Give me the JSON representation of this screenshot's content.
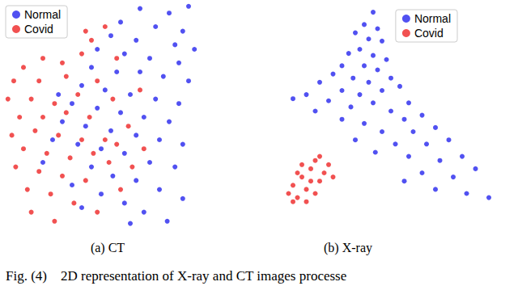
{
  "caption": "Fig. (4)    2D representation of X-ray and CT images processe",
  "chart_data": [
    {
      "type": "scatter",
      "title": "(a) CT",
      "xlim": [
        0,
        100
      ],
      "ylim": [
        0,
        100
      ],
      "tick_labels": false,
      "legend": "upper left",
      "series": [
        {
          "name": "Normal",
          "color": "#3333ee",
          "marker": "circle",
          "values": [
            [
              70,
              98
            ],
            [
              85,
              96
            ],
            [
              95,
              99
            ],
            [
              60,
              92
            ],
            [
              78,
              90
            ],
            [
              92,
              88
            ],
            [
              55,
              86
            ],
            [
              68,
              84
            ],
            [
              88,
              82
            ],
            [
              98,
              80
            ],
            [
              48,
              80
            ],
            [
              62,
              78
            ],
            [
              75,
              76
            ],
            [
              90,
              74
            ],
            [
              45,
              72
            ],
            [
              58,
              70
            ],
            [
              70,
              70
            ],
            [
              82,
              68
            ],
            [
              95,
              66
            ],
            [
              40,
              64
            ],
            [
              52,
              62
            ],
            [
              65,
              60
            ],
            [
              78,
              58
            ],
            [
              90,
              56
            ],
            [
              35,
              56
            ],
            [
              48,
              54
            ],
            [
              60,
              52
            ],
            [
              72,
              50
            ],
            [
              85,
              48
            ],
            [
              30,
              48
            ],
            [
              42,
              46
            ],
            [
              55,
              44
            ],
            [
              68,
              42
            ],
            [
              80,
              40
            ],
            [
              92,
              38
            ],
            [
              38,
              38
            ],
            [
              50,
              36
            ],
            [
              62,
              34
            ],
            [
              75,
              30
            ],
            [
              88,
              28
            ],
            [
              45,
              28
            ],
            [
              56,
              24
            ],
            [
              68,
              22
            ],
            [
              80,
              18
            ],
            [
              92,
              14
            ],
            [
              50,
              16
            ],
            [
              62,
              12
            ],
            [
              72,
              8
            ],
            [
              84,
              4
            ],
            [
              25,
              40
            ],
            [
              20,
              30
            ],
            [
              35,
              20
            ],
            [
              40,
              10
            ],
            [
              28,
              60
            ],
            [
              65,
              3
            ]
          ]
        },
        {
          "name": "Covid",
          "color": "#ee3333",
          "marker": "circle",
          "values": [
            [
              40,
              78
            ],
            [
              52,
              90
            ],
            [
              45,
              84
            ],
            [
              20,
              76
            ],
            [
              10,
              72
            ],
            [
              30,
              74
            ],
            [
              5,
              66
            ],
            [
              18,
              66
            ],
            [
              32,
              68
            ],
            [
              2,
              58
            ],
            [
              14,
              58
            ],
            [
              26,
              56
            ],
            [
              38,
              60
            ],
            [
              8,
              50
            ],
            [
              20,
              50
            ],
            [
              32,
              52
            ],
            [
              44,
              50
            ],
            [
              4,
              42
            ],
            [
              16,
              44
            ],
            [
              28,
              42
            ],
            [
              40,
              40
            ],
            [
              52,
              40
            ],
            [
              10,
              36
            ],
            [
              22,
              34
            ],
            [
              34,
              32
            ],
            [
              46,
              34
            ],
            [
              58,
              38
            ],
            [
              6,
              28
            ],
            [
              18,
              26
            ],
            [
              30,
              24
            ],
            [
              42,
              22
            ],
            [
              54,
              30
            ],
            [
              66,
              28
            ],
            [
              12,
              18
            ],
            [
              24,
              16
            ],
            [
              36,
              12
            ],
            [
              48,
              8
            ],
            [
              60,
              18
            ],
            [
              14,
              8
            ],
            [
              26,
              4
            ],
            [
              72,
              36
            ],
            [
              64,
              46
            ],
            [
              56,
              58
            ],
            [
              48,
              66
            ],
            [
              70,
              62
            ],
            [
              58,
              76
            ],
            [
              42,
              88
            ]
          ]
        }
      ]
    },
    {
      "type": "scatter",
      "title": "(b) X-ray",
      "xlim": [
        0,
        100
      ],
      "ylim": [
        0,
        100
      ],
      "tick_labels": false,
      "legend": "upper right",
      "series": [
        {
          "name": "Normal",
          "color": "#3333ee",
          "marker": "circle",
          "values": [
            [
              44,
              98
            ],
            [
              40,
              92
            ],
            [
              46,
              90
            ],
            [
              36,
              88
            ],
            [
              42,
              85
            ],
            [
              48,
              84
            ],
            [
              38,
              80
            ],
            [
              33,
              78
            ],
            [
              44,
              77
            ],
            [
              50,
              75
            ],
            [
              30,
              72
            ],
            [
              40,
              72
            ],
            [
              46,
              70
            ],
            [
              26,
              68
            ],
            [
              35,
              66
            ],
            [
              42,
              64
            ],
            [
              52,
              66
            ],
            [
              20,
              64
            ],
            [
              30,
              60
            ],
            [
              38,
              58
            ],
            [
              48,
              60
            ],
            [
              56,
              62
            ],
            [
              14,
              58
            ],
            [
              24,
              55
            ],
            [
              34,
              52
            ],
            [
              44,
              54
            ],
            [
              8,
              56
            ],
            [
              18,
              50
            ],
            [
              52,
              50
            ],
            [
              60,
              54
            ],
            [
              30,
              46
            ],
            [
              40,
              44
            ],
            [
              58,
              46
            ],
            [
              66,
              48
            ],
            [
              48,
              40
            ],
            [
              62,
              40
            ],
            [
              72,
              42
            ],
            [
              54,
              34
            ],
            [
              68,
              34
            ],
            [
              78,
              36
            ],
            [
              60,
              28
            ],
            [
              74,
              26
            ],
            [
              84,
              28
            ],
            [
              66,
              20
            ],
            [
              80,
              18
            ],
            [
              90,
              22
            ],
            [
              72,
              12
            ],
            [
              86,
              10
            ],
            [
              96,
              8
            ],
            [
              58,
              16
            ],
            [
              45,
              30
            ],
            [
              36,
              36
            ]
          ]
        },
        {
          "name": "Covid",
          "color": "#ee3333",
          "marker": "circle",
          "values": [
            [
              6,
              10
            ],
            [
              8,
              14
            ],
            [
              10,
              8
            ],
            [
              12,
              18
            ],
            [
              14,
              12
            ],
            [
              16,
              22
            ],
            [
              18,
              10
            ],
            [
              20,
              16
            ],
            [
              22,
              20
            ],
            [
              24,
              24
            ],
            [
              10,
              20
            ],
            [
              14,
              6
            ],
            [
              18,
              26
            ],
            [
              20,
              28
            ],
            [
              8,
              6
            ],
            [
              26,
              18
            ],
            [
              12,
              24
            ],
            [
              16,
              16
            ]
          ]
        }
      ]
    }
  ]
}
